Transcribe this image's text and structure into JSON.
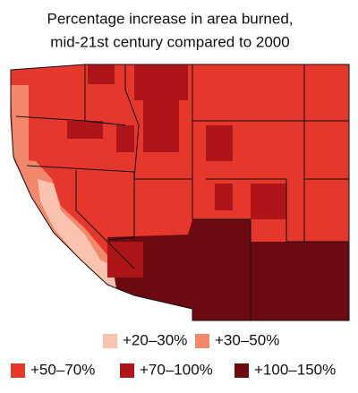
{
  "title_lines": [
    "Percentage increase in area burned,",
    "mid-21st century compared to 2000"
  ],
  "legend": [
    {
      "label": "+20–30%",
      "color": "#f9c3ad"
    },
    {
      "label": "+30–50%",
      "color": "#f2876b"
    },
    {
      "label": "+50–70%",
      "color": "#e5372c"
    },
    {
      "label": "+70–100%",
      "color": "#ad1519"
    },
    {
      "label": "+100–150%",
      "color": "#6b0a10"
    }
  ]
}
